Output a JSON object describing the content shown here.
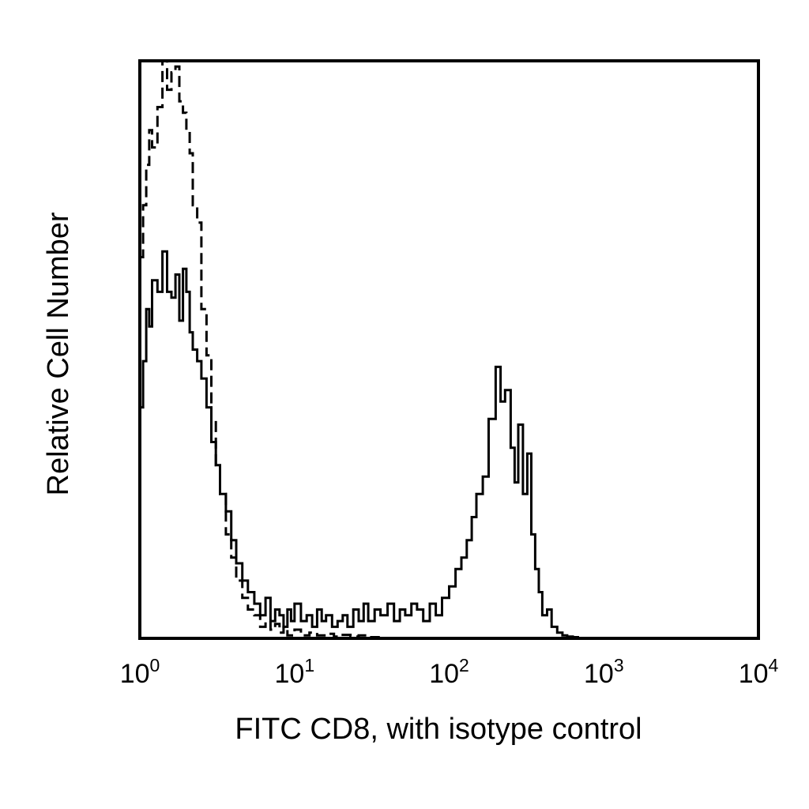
{
  "chart_data": {
    "type": "line",
    "title": "",
    "xlabel": "FITC CD8, with isotype control",
    "ylabel": "Relative Cell Number",
    "x_scale": "log",
    "xlim": [
      1,
      10000
    ],
    "ylim": [
      0,
      100
    ],
    "y_ticks_shown": false,
    "grid": false,
    "x_ticks": [
      {
        "base": "10",
        "exp": "0"
      },
      {
        "base": "10",
        "exp": "1"
      },
      {
        "base": "10",
        "exp": "2"
      },
      {
        "base": "10",
        "exp": "3"
      },
      {
        "base": "10",
        "exp": "4"
      }
    ],
    "series": [
      {
        "style": "dashed",
        "color": "#000000",
        "x": [
          1.0,
          1.05,
          1.1,
          1.15,
          1.2,
          1.3,
          1.4,
          1.5,
          1.6,
          1.7,
          1.8,
          1.9,
          2.0,
          2.1,
          2.2,
          2.35,
          2.5,
          2.7,
          2.9,
          3.1,
          3.3,
          3.6,
          3.9,
          4.2,
          4.6,
          5.0,
          5.5,
          6.0,
          6.5,
          7.0,
          7.5,
          8.0,
          8.5,
          9.0,
          10.0,
          11.0,
          12.5,
          14.0,
          16.0,
          18.0,
          20.0,
          23.0,
          26.0,
          30.0,
          35.0
        ],
        "y": [
          66,
          75,
          82,
          88,
          85,
          92,
          100,
          95,
          98,
          99,
          93,
          91,
          88,
          84,
          75,
          72,
          57,
          49,
          38,
          30,
          25,
          18,
          14,
          10,
          7,
          5,
          4,
          2,
          3,
          1.5,
          2.5,
          1,
          2,
          0.5,
          1.5,
          0.5,
          1,
          0.5,
          0.8,
          0.3,
          0.6,
          0.3,
          0.5,
          0.2,
          0
        ]
      },
      {
        "style": "solid",
        "color": "#000000",
        "x": [
          1.0,
          1.05,
          1.1,
          1.15,
          1.2,
          1.3,
          1.4,
          1.5,
          1.6,
          1.7,
          1.8,
          1.9,
          2.0,
          2.1,
          2.2,
          2.35,
          2.5,
          2.7,
          2.9,
          3.1,
          3.3,
          3.6,
          3.9,
          4.2,
          4.6,
          5.0,
          5.5,
          6.0,
          6.5,
          7.0,
          7.5,
          8.0,
          8.5,
          9.0,
          9.5,
          10.0,
          11.0,
          12.0,
          13.0,
          14.0,
          15.0,
          16.0,
          17.5,
          19.0,
          20.5,
          22.0,
          24.0,
          26.0,
          28.0,
          30.0,
          33.0,
          36.0,
          40.0,
          44.0,
          48.0,
          52.0,
          57.0,
          62.0,
          68.0,
          75.0,
          82.0,
          90.0,
          100.0,
          110.0,
          120.0,
          130.0,
          140.0,
          150.0,
          165.0,
          180.0,
          200.0,
          215.0,
          230.0,
          250.0,
          265.0,
          280.0,
          300.0,
          320.0,
          340.0,
          360.0,
          380.0,
          400.0,
          430.0,
          460.0,
          500.0,
          540.0,
          580.0,
          630.0,
          680.0
        ],
        "y": [
          40,
          48,
          57,
          54,
          62,
          60,
          67,
          60,
          59,
          63,
          55,
          64,
          60,
          53,
          50,
          48,
          45,
          40,
          34,
          30,
          25,
          22,
          17,
          13,
          10,
          8,
          6,
          4,
          7,
          3,
          5,
          4,
          2,
          5,
          3,
          6,
          3,
          4,
          2,
          5,
          3,
          4,
          2,
          3,
          4,
          2,
          5,
          3,
          6,
          3,
          5,
          4,
          6,
          3,
          5,
          4,
          6,
          5,
          3,
          6,
          4,
          7,
          9,
          12,
          14,
          17,
          21,
          25,
          28,
          38,
          47,
          41,
          43,
          33,
          27,
          37,
          25,
          32,
          18,
          12,
          8,
          4,
          5,
          2,
          1,
          0.5,
          0.3,
          0.2,
          0
        ]
      }
    ]
  }
}
